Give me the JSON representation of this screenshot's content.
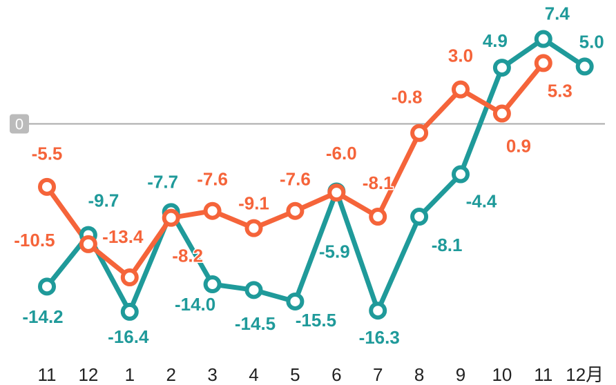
{
  "chart_data": {
    "type": "line",
    "categories": [
      "11",
      "12",
      "1",
      "2",
      "3",
      "4",
      "5",
      "6",
      "7",
      "8",
      "9",
      "10",
      "11",
      "12月"
    ],
    "series": [
      {
        "color": "#1f9a9a",
        "values": [
          -14.2,
          -9.7,
          -16.4,
          -7.7,
          -14.0,
          -14.5,
          -15.5,
          -5.9,
          -16.3,
          -8.1,
          -4.4,
          4.9,
          7.4,
          5.0
        ],
        "value_labels": [
          "-14.2",
          "-9.7",
          "-16.4",
          "-7.7",
          "-14.0",
          "-14.5",
          "-15.5",
          "-5.9",
          "-16.3",
          "-8.1",
          "-4.4",
          "4.9",
          "7.4",
          "5.0"
        ]
      },
      {
        "color": "#f5643a",
        "values": [
          -5.5,
          -10.5,
          -13.4,
          -8.2,
          -7.6,
          -9.1,
          -7.6,
          -6.0,
          -8.1,
          -0.8,
          3.0,
          0.9,
          5.3,
          null
        ],
        "value_labels": [
          "-5.5",
          "-10.5",
          "-13.4",
          "-8.2",
          "-7.6",
          "-9.1",
          "-7.6",
          "-6.0",
          "-8.1",
          "-0.8",
          "3.0",
          "0.9",
          "5.3",
          null
        ]
      }
    ],
    "ylim": [
      -20.5,
      9.6
    ],
    "yticks": [
      0
    ],
    "grid": true
  }
}
